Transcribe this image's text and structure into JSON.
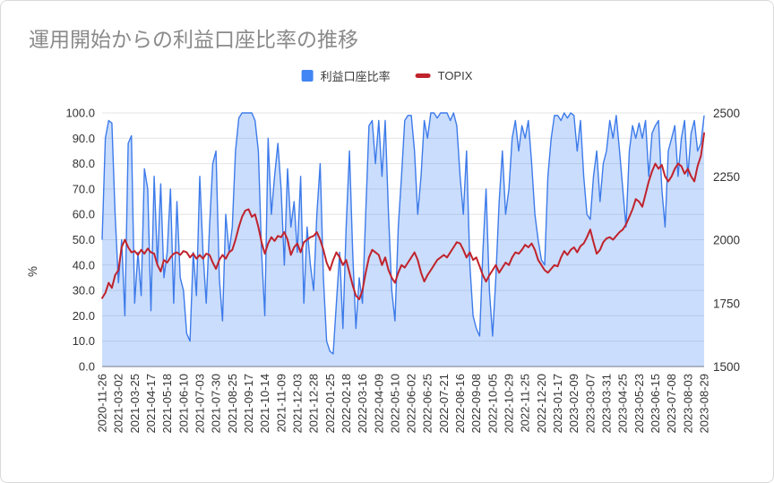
{
  "card": {
    "title": "運用開始からの利益口座比率の推移"
  },
  "legend": {
    "items": [
      {
        "label": "利益口座比率",
        "color": "#4285f4",
        "swatch": "square"
      },
      {
        "label": "TOPIX",
        "color": "#c0232c",
        "swatch": "dash"
      }
    ]
  },
  "chart_data": {
    "type": "area+line combo (daily time series)",
    "title": "運用開始からの利益口座比率の推移",
    "categories": [
      "2020-11-26",
      "2021-03-02",
      "2021-03-25",
      "2021-04-17",
      "2021-05-18",
      "2021-06-10",
      "2021-07-03",
      "2021-07-30",
      "2021-08-25",
      "2021-09-17",
      "2021-10-14",
      "2021-11-09",
      "2021-12-03",
      "2021-12-28",
      "2022-01-25",
      "2022-02-18",
      "2022-03-16",
      "2022-04-09",
      "2022-05-10",
      "2022-06-02",
      "2022-06-25",
      "2022-07-21",
      "2022-08-16",
      "2022-09-08",
      "2022-10-05",
      "2022-10-29",
      "2022-11-25",
      "2022-12-20",
      "2023-01-17",
      "2023-02-09",
      "2023-03-07",
      "2023-03-31",
      "2023-04-25",
      "2023-05-23",
      "2023-06-15",
      "2023-07-08",
      "2023-08-03",
      "2023-08-29"
    ],
    "left_axis": {
      "label": "%",
      "range": [
        0,
        100
      ],
      "ticks": [
        0,
        10,
        20,
        30,
        40,
        50,
        60,
        70,
        80,
        90,
        100
      ],
      "tick_labels": [
        "0.0",
        "10.0",
        "20.0",
        "30.0",
        "40.0",
        "50.0",
        "60.0",
        "70.0",
        "80.0",
        "90.0",
        "100.0"
      ]
    },
    "right_axis": {
      "range": [
        1500,
        2500
      ],
      "ticks": [
        1500,
        1750,
        2000,
        2250,
        2500
      ]
    },
    "layout": {
      "grid": true,
      "legend_position": "top-center",
      "x_labels_rotated_deg": -90,
      "points_per_label_interval": 5
    },
    "series": [
      {
        "name": "利益口座比率",
        "type": "area",
        "axis": "left",
        "color": "#3d7bea",
        "fill": "rgba(66,133,244,0.28)",
        "values": [
          50,
          90,
          97,
          96,
          60,
          33,
          50,
          20,
          88,
          91,
          25,
          45,
          28,
          78,
          70,
          22,
          75,
          40,
          72,
          35,
          45,
          70,
          25,
          65,
          35,
          30,
          13,
          10,
          45,
          28,
          75,
          45,
          25,
          55,
          80,
          85,
          35,
          18,
          60,
          45,
          55,
          85,
          98,
          100,
          100,
          100,
          100,
          97,
          85,
          45,
          20,
          90,
          60,
          75,
          88,
          70,
          40,
          78,
          55,
          65,
          45,
          75,
          25,
          55,
          40,
          30,
          60,
          80,
          35,
          10,
          6,
          5,
          25,
          45,
          15,
          55,
          85,
          45,
          15,
          35,
          25,
          60,
          95,
          97,
          80,
          97,
          75,
          97,
          60,
          30,
          18,
          55,
          75,
          97,
          99,
          99,
          85,
          60,
          75,
          97,
          90,
          100,
          100,
          98,
          100,
          100,
          100,
          97,
          100,
          95,
          75,
          60,
          85,
          40,
          20,
          15,
          12,
          45,
          70,
          30,
          12,
          35,
          65,
          85,
          60,
          70,
          90,
          97,
          85,
          95,
          90,
          97,
          80,
          60,
          50,
          42,
          40,
          75,
          90,
          99,
          99,
          97,
          100,
          98,
          100,
          99,
          85,
          97,
          75,
          60,
          58,
          75,
          85,
          65,
          80,
          85,
          97,
          90,
          99,
          85,
          70,
          55,
          85,
          95,
          90,
          96,
          90,
          97,
          75,
          92,
          95,
          97,
          70,
          55,
          85,
          90,
          95,
          75,
          90,
          97,
          75,
          92,
          97,
          85,
          88,
          99
        ]
      },
      {
        "name": "TOPIX",
        "type": "line",
        "axis": "right",
        "color": "#c0232c",
        "values": [
          1770,
          1790,
          1830,
          1810,
          1860,
          1880,
          1970,
          2000,
          1970,
          1950,
          1955,
          1940,
          1960,
          1945,
          1965,
          1950,
          1945,
          1900,
          1875,
          1920,
          1910,
          1930,
          1945,
          1950,
          1940,
          1955,
          1950,
          1930,
          1945,
          1925,
          1940,
          1925,
          1945,
          1940,
          1910,
          1885,
          1920,
          1940,
          1925,
          1950,
          1960,
          2000,
          2050,
          2090,
          2115,
          2120,
          2090,
          2100,
          2050,
          1990,
          1945,
          1985,
          2010,
          1995,
          2015,
          2010,
          2030,
          2000,
          1940,
          1970,
          1985,
          1950,
          1990,
          2000,
          2010,
          2015,
          2030,
          2000,
          1960,
          1910,
          1880,
          1920,
          1950,
          1930,
          1900,
          1920,
          1870,
          1820,
          1780,
          1765,
          1800,
          1870,
          1930,
          1960,
          1950,
          1940,
          1900,
          1930,
          1880,
          1850,
          1830,
          1870,
          1900,
          1890,
          1910,
          1930,
          1950,
          1920,
          1870,
          1835,
          1860,
          1880,
          1900,
          1920,
          1930,
          1940,
          1930,
          1950,
          1970,
          1990,
          1985,
          1960,
          1930,
          1950,
          1920,
          1930,
          1895,
          1860,
          1835,
          1860,
          1880,
          1900,
          1870,
          1890,
          1910,
          1900,
          1930,
          1950,
          1945,
          1960,
          1980,
          1970,
          1985,
          1960,
          1920,
          1900,
          1880,
          1870,
          1885,
          1900,
          1895,
          1930,
          1955,
          1940,
          1960,
          1970,
          1950,
          1975,
          1985,
          2010,
          2040,
          1990,
          1945,
          1960,
          1990,
          2005,
          2010,
          2000,
          2015,
          2030,
          2040,
          2060,
          2090,
          2120,
          2160,
          2150,
          2130,
          2180,
          2230,
          2270,
          2300,
          2280,
          2295,
          2250,
          2230,
          2250,
          2280,
          2300,
          2290,
          2260,
          2280,
          2250,
          2230,
          2290,
          2330,
          2420
        ]
      }
    ]
  }
}
